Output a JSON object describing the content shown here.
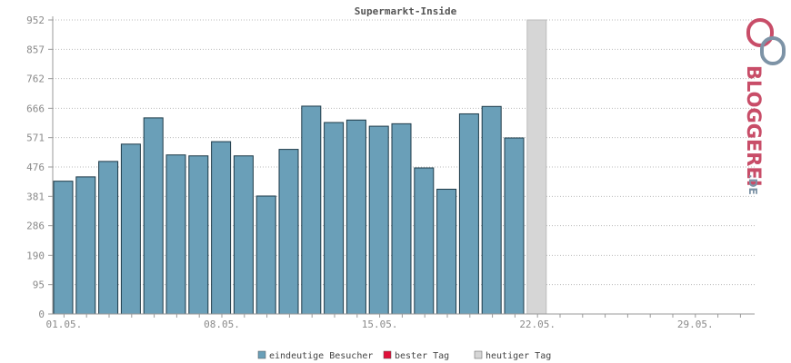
{
  "chart_data": {
    "type": "bar",
    "title": "Supermarkt-Inside",
    "xlabel": "",
    "ylabel": "",
    "yticks": [
      0,
      95,
      190,
      286,
      381,
      476,
      571,
      666,
      762,
      857,
      952
    ],
    "ylim": [
      0,
      952
    ],
    "x_ticklabels": [
      "01.05.",
      "08.05.",
      "15.05.",
      "22.05.",
      "29.05."
    ],
    "grid": true,
    "legend_position": "bottom-center",
    "days_total": 31,
    "values": [
      430,
      444,
      494,
      550,
      635,
      515,
      512,
      558,
      512,
      382,
      533,
      673,
      620,
      628,
      608,
      616,
      473,
      404,
      648,
      672,
      570
    ],
    "today_value": 952,
    "series": [
      {
        "name": "eindeutige Besucher",
        "color": "#6a9fb8"
      },
      {
        "name": "bester Tag",
        "color": "#e0103a"
      },
      {
        "name": "heutiger Tag",
        "color": "#d6d6d6"
      }
    ]
  },
  "logo": {
    "name": "BLOGGEREI",
    "suffix": ".DE",
    "colors": {
      "primary": "#c84d68",
      "secondary": "#7d93a6"
    }
  }
}
